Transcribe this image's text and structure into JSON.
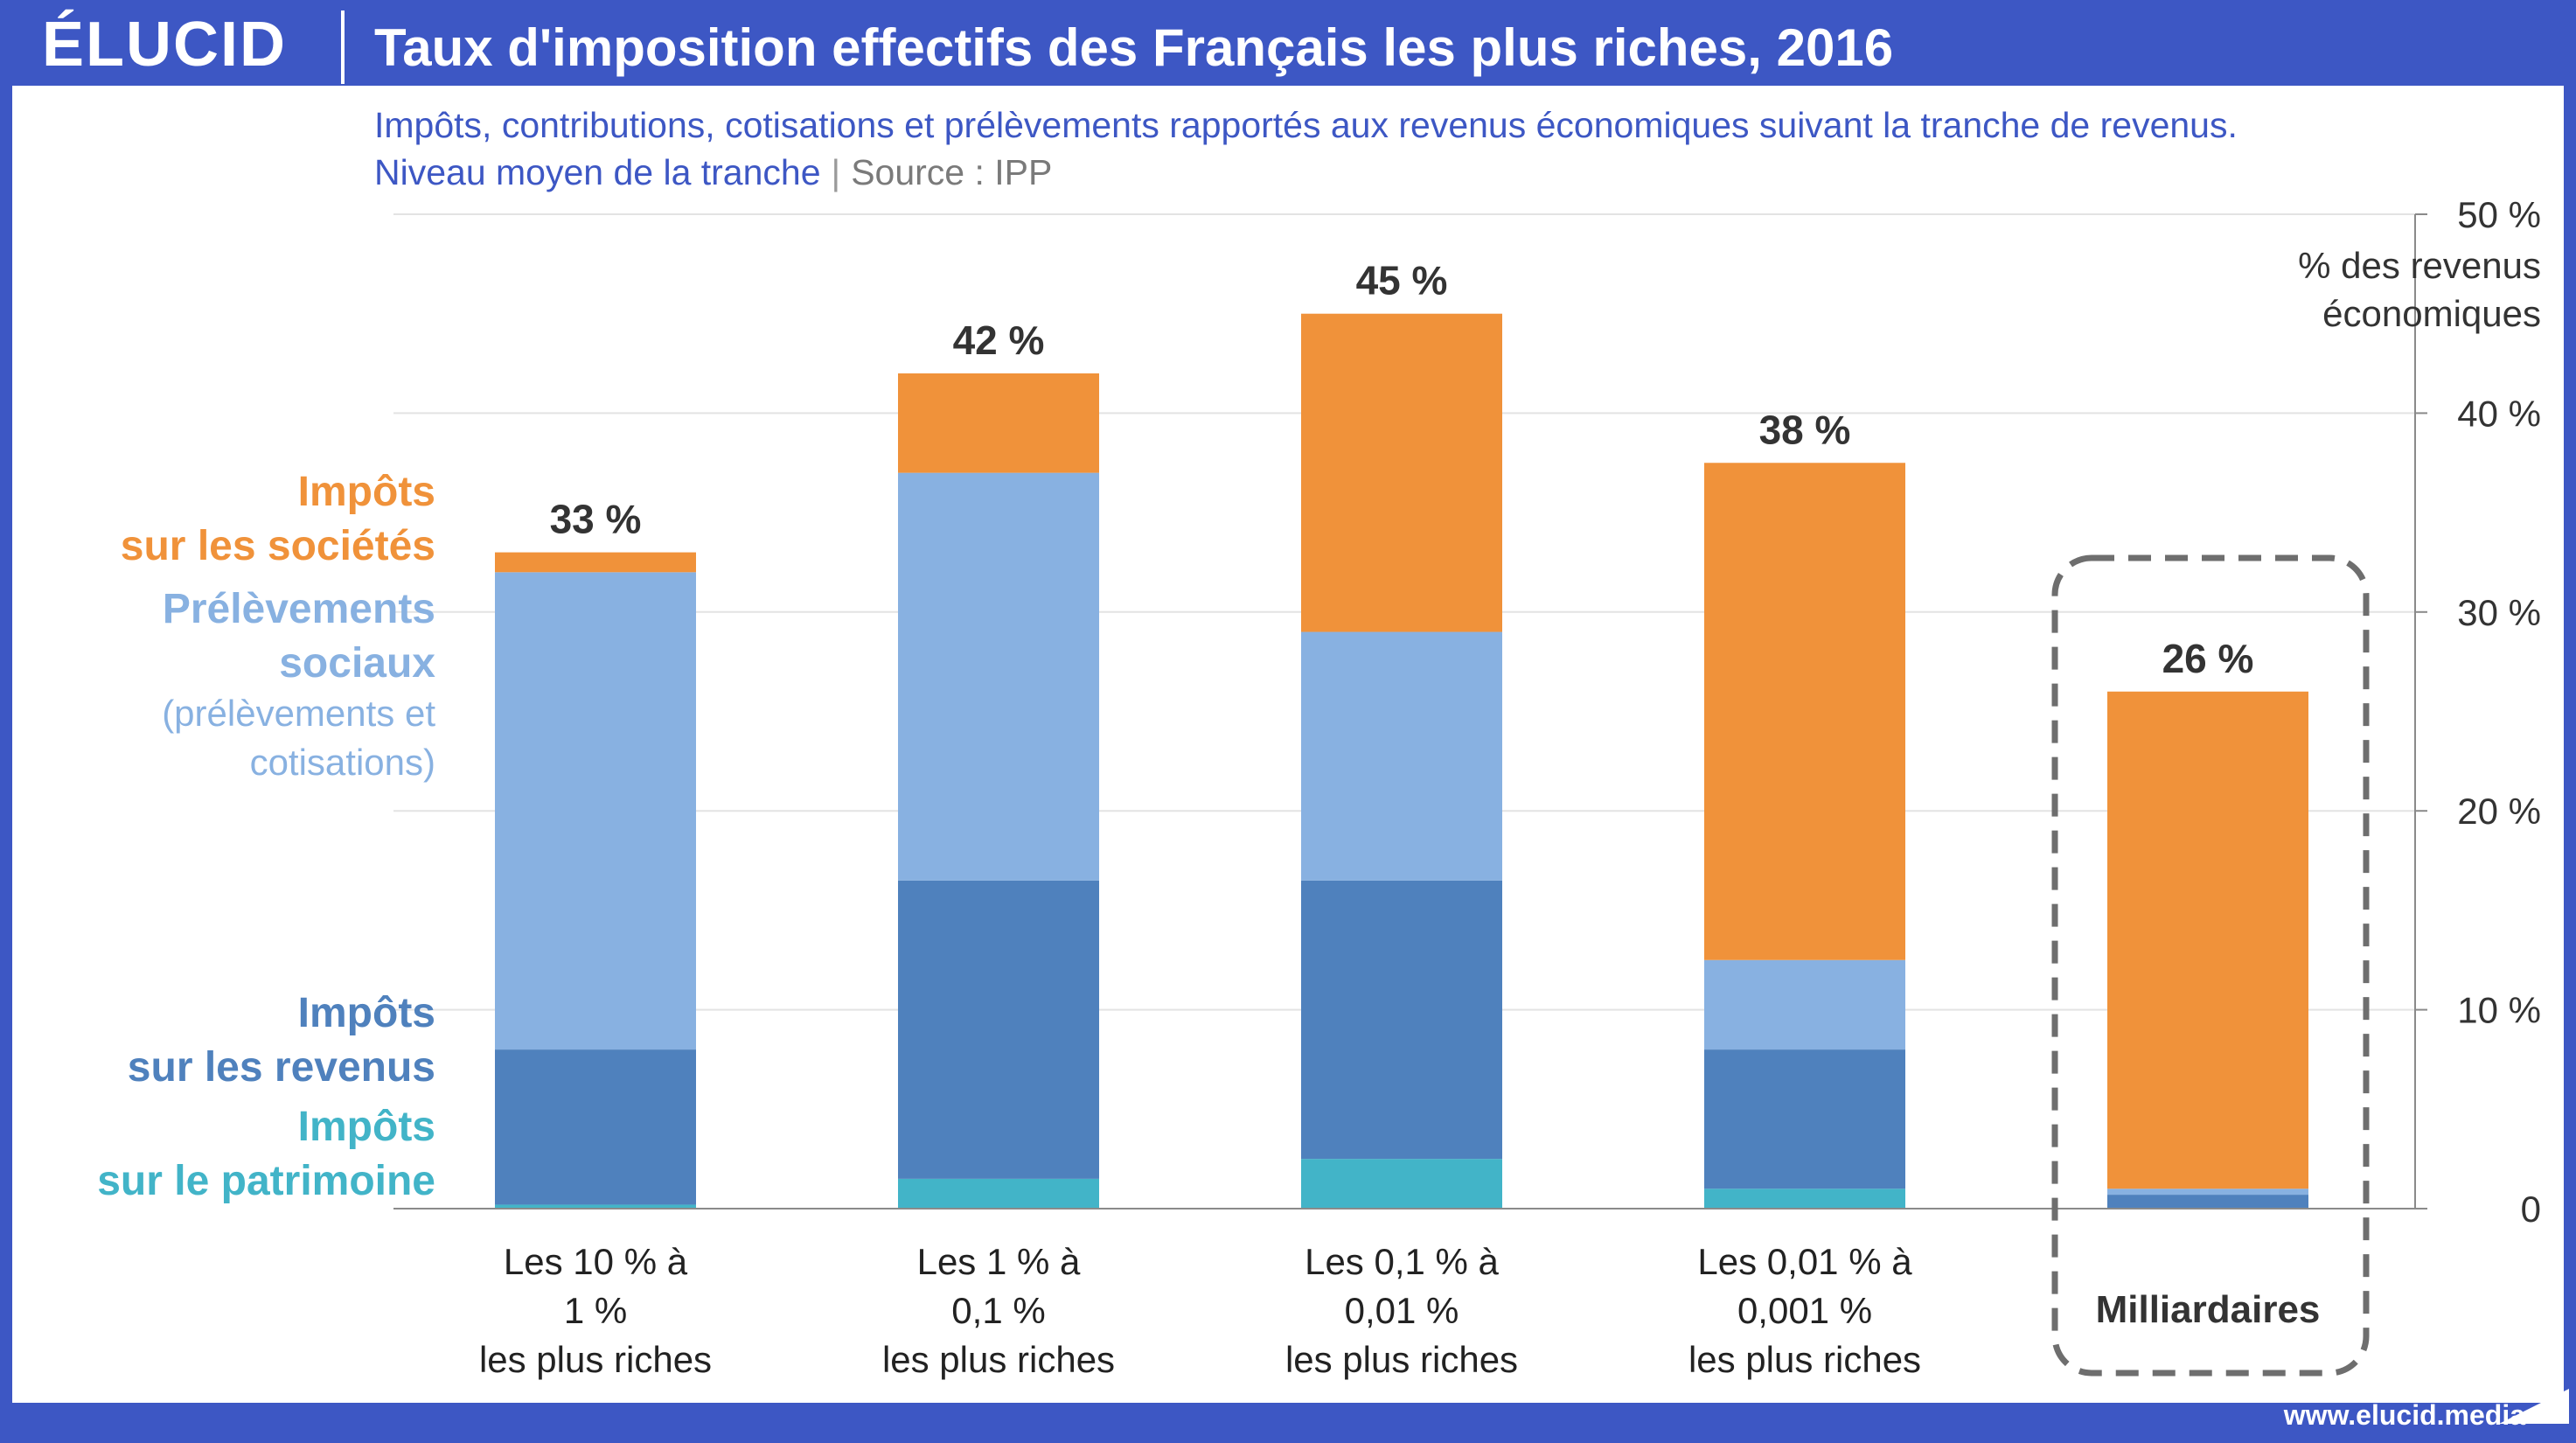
{
  "header": {
    "logo": "ÉLUCID",
    "title": "Taux d'imposition effectifs des Français les plus riches, 2016"
  },
  "subtitle": {
    "line1": "Impôts, contributions, cotisations et prélèvements rapportés aux revenus économiques suivant la tranche de revenus.",
    "line2": "Niveau moyen de la tranche",
    "separator": "|",
    "source": "Source : IPP"
  },
  "footer": {
    "url": "www.elucid.media"
  },
  "colors": {
    "impots_societes": "#f0923a",
    "prelevements_sociaux": "#88b1e1",
    "impots_revenus": "#4f81bd",
    "impots_patrimoine": "#42b4c8",
    "brand": "#3d57c4"
  },
  "legend": {
    "societes": [
      "Impôts",
      "sur les sociétés"
    ],
    "sociaux": [
      "Prélèvements",
      "sociaux"
    ],
    "sociaux_note": [
      "(prélèvements et",
      "cotisations)"
    ],
    "revenus": [
      "Impôts",
      "sur les revenus"
    ],
    "patrimoine": [
      "Impôts",
      "sur le patrimoine"
    ]
  },
  "chart_data": {
    "type": "bar",
    "stacked": true,
    "ylabel": "% des revenus économiques",
    "ylim": [
      0,
      50
    ],
    "yticks": [
      "0",
      "10 %",
      "20 %",
      "30 %",
      "40 %",
      "50 %"
    ],
    "ylabel_lines": [
      "% des revenus",
      "économiques"
    ],
    "categories": [
      [
        "Les 10 % à",
        "1 %",
        "les plus riches"
      ],
      [
        "Les 1 % à",
        "0,1 %",
        "les plus riches"
      ],
      [
        "Les 0,1 % à",
        "0,01 %",
        "les plus riches"
      ],
      [
        "Les 0,01 % à",
        "0,001 %",
        "les plus riches"
      ],
      [
        "Milliardaires"
      ]
    ],
    "series": [
      {
        "name": "Impôts sur le patrimoine",
        "values": [
          0.2,
          1.5,
          2.5,
          1.0,
          0.0
        ]
      },
      {
        "name": "Impôts sur les revenus",
        "values": [
          7.8,
          15.0,
          14.0,
          7.0,
          0.7
        ]
      },
      {
        "name": "Prélèvements sociaux",
        "values": [
          24.0,
          20.5,
          12.5,
          4.5,
          0.3
        ]
      },
      {
        "name": "Impôts sur les sociétés",
        "values": [
          1.0,
          5.0,
          16.0,
          25.0,
          25.0
        ]
      }
    ],
    "totals": [
      "33 %",
      "42 %",
      "45 %",
      "38 %",
      "26 %"
    ],
    "highlighted_category": "Milliardaires",
    "grid": true
  }
}
